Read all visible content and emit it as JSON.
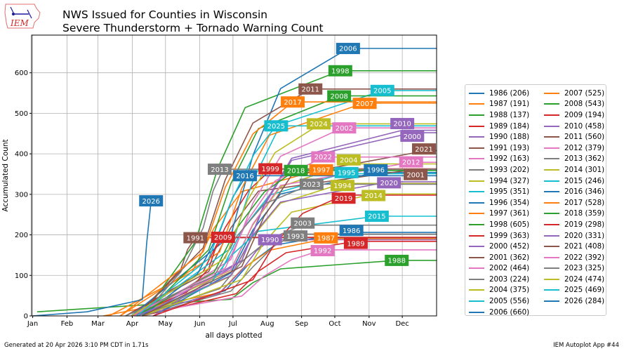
{
  "logo": {
    "text": "IEM"
  },
  "header": {
    "title_line1": "NWS Issued for Counties in Wisconsin",
    "title_line2": "Severe Thunderstorm + Tornado Warning Count"
  },
  "footer": {
    "generated": "Generated at 20 Apr 2026 3:10 PM CDT in 1.71s",
    "app": "IEM Autoplot App #44"
  },
  "chart_data": {
    "type": "line",
    "title": "NWS Issued for Counties in Wisconsin\nSevere Thunderstorm + Tornado Warning Count",
    "xlabel": "all days plotted",
    "ylabel": "Accumulated Count",
    "xlim_day_of_year": [
      0,
      366
    ],
    "ylim": [
      0,
      693
    ],
    "yticks": [
      0,
      100,
      200,
      300,
      400,
      500,
      600
    ],
    "xticks": [
      {
        "label": "Jan",
        "day": 1
      },
      {
        "label": "Feb",
        "day": 32
      },
      {
        "label": "Mar",
        "day": 60
      },
      {
        "label": "Apr",
        "day": 91
      },
      {
        "label": "May",
        "day": 121
      },
      {
        "label": "Jun",
        "day": 152
      },
      {
        "label": "Jul",
        "day": 182
      },
      {
        "label": "Aug",
        "day": 213
      },
      {
        "label": "Sep",
        "day": 244
      },
      {
        "label": "Oct",
        "day": 274
      },
      {
        "label": "Nov",
        "day": 305
      },
      {
        "label": "Dec",
        "day": 335
      }
    ],
    "grid": true,
    "legend_placement": "right",
    "series": [
      {
        "name": "1986",
        "legend": "1986 (206)",
        "total": 206,
        "color": "#1f77b4",
        "points": [
          [
            95,
            0
          ],
          [
            175,
            62
          ],
          [
            195,
            124
          ],
          [
            220,
            175
          ],
          [
            288,
            206
          ]
        ]
      },
      {
        "name": "1987",
        "legend": "1987 (191)",
        "total": 191,
        "color": "#ff7f0e",
        "points": [
          [
            65,
            0
          ],
          [
            170,
            57
          ],
          [
            190,
            115
          ],
          [
            215,
            162
          ],
          [
            267,
            191
          ]
        ]
      },
      {
        "name": "1988",
        "legend": "1988 (137)",
        "total": 137,
        "color": "#2ca02c",
        "points": [
          [
            5,
            10
          ],
          [
            180,
            41
          ],
          [
            200,
            82
          ],
          [
            225,
            116
          ],
          [
            330,
            137
          ]
        ]
      },
      {
        "name": "1989",
        "legend": "1989 (184)",
        "total": 184,
        "color": "#d62728",
        "points": [
          [
            100,
            0
          ],
          [
            185,
            55
          ],
          [
            205,
            110
          ],
          [
            230,
            156
          ],
          [
            293,
            184
          ]
        ]
      },
      {
        "name": "1990",
        "legend": "1990 (188)",
        "total": 188,
        "color": "#9467bd",
        "points": [
          [
            90,
            0
          ],
          [
            170,
            56
          ],
          [
            190,
            113
          ],
          [
            203,
            160
          ],
          [
            216,
            188
          ]
        ]
      },
      {
        "name": "1991",
        "legend": "1991 (193)",
        "total": 193,
        "color": "#8c564b",
        "points": [
          [
            95,
            0
          ],
          [
            115,
            58
          ],
          [
            135,
            116
          ],
          [
            141,
            164
          ],
          [
            148,
            193
          ]
        ]
      },
      {
        "name": "1992",
        "legend": "1992 (163)",
        "total": 163,
        "color": "#e377c2",
        "points": [
          [
            90,
            0
          ],
          [
            190,
            49
          ],
          [
            210,
            98
          ],
          [
            235,
            139
          ],
          [
            263,
            163
          ]
        ]
      },
      {
        "name": "1993",
        "legend": "1993 (202)",
        "total": 202,
        "color": "#7f7f7f",
        "points": [
          [
            100,
            0
          ],
          [
            180,
            61
          ],
          [
            200,
            121
          ],
          [
            219,
            172
          ],
          [
            238,
            202
          ]
        ]
      },
      {
        "name": "1994",
        "legend": "1994 (327)",
        "total": 327,
        "color": "#bcbd22",
        "points": [
          [
            100,
            0
          ],
          [
            180,
            98
          ],
          [
            200,
            196
          ],
          [
            225,
            278
          ],
          [
            281,
            327
          ]
        ]
      },
      {
        "name": "1995",
        "legend": "1995 (351)",
        "total": 351,
        "color": "#17becf",
        "points": [
          [
            100,
            0
          ],
          [
            170,
            105
          ],
          [
            190,
            211
          ],
          [
            215,
            298
          ],
          [
            281,
            351
          ]
        ]
      },
      {
        "name": "1996",
        "legend": "1996 (354)",
        "total": 354,
        "color": "#1f77b4",
        "points": [
          [
            110,
            0
          ],
          [
            180,
            106
          ],
          [
            200,
            212
          ],
          [
            225,
            301
          ],
          [
            311,
            354
          ]
        ]
      },
      {
        "name": "1997",
        "legend": "1997 (361)",
        "total": 361,
        "color": "#ff7f0e",
        "points": [
          [
            70,
            0
          ],
          [
            145,
            108
          ],
          [
            165,
            217
          ],
          [
            190,
            307
          ],
          [
            261,
            361
          ]
        ]
      },
      {
        "name": "1998",
        "legend": "1998 (605)",
        "total": 605,
        "color": "#2ca02c",
        "points": [
          [
            100,
            0
          ],
          [
            148,
            182
          ],
          [
            168,
            363
          ],
          [
            193,
            514
          ],
          [
            279,
            605
          ]
        ]
      },
      {
        "name": "1999",
        "legend": "1999 (363)",
        "total": 363,
        "color": "#d62728",
        "points": [
          [
            85,
            0
          ],
          [
            155,
            109
          ],
          [
            175,
            218
          ],
          [
            196,
            309
          ],
          [
            217,
            363
          ]
        ]
      },
      {
        "name": "2000",
        "legend": "2000 (452)",
        "total": 452,
        "color": "#9467bd",
        "points": [
          [
            110,
            0
          ],
          [
            190,
            136
          ],
          [
            210,
            271
          ],
          [
            235,
            384
          ],
          [
            344,
            452
          ]
        ]
      },
      {
        "name": "2001",
        "legend": "2001 (362)",
        "total": 362,
        "color": "#8c564b",
        "points": [
          [
            85,
            0
          ],
          [
            160,
            109
          ],
          [
            180,
            217
          ],
          [
            205,
            308
          ],
          [
            347,
            362
          ]
        ]
      },
      {
        "name": "2002",
        "legend": "2002 (464)",
        "total": 464,
        "color": "#e377c2",
        "points": [
          [
            100,
            0
          ],
          [
            180,
            139
          ],
          [
            200,
            278
          ],
          [
            225,
            394
          ],
          [
            281,
            464
          ]
        ]
      },
      {
        "name": "2003",
        "legend": "2003 (224)",
        "total": 224,
        "color": "#7f7f7f",
        "points": [
          [
            95,
            0
          ],
          [
            170,
            67
          ],
          [
            190,
            134
          ],
          [
            215,
            190
          ],
          [
            245,
            224
          ]
        ]
      },
      {
        "name": "2004",
        "legend": "2004 (375)",
        "total": 375,
        "color": "#bcbd22",
        "points": [
          [
            95,
            0
          ],
          [
            180,
            113
          ],
          [
            200,
            225
          ],
          [
            225,
            319
          ],
          [
            286,
            375
          ]
        ]
      },
      {
        "name": "2005",
        "legend": "2005 (556)",
        "total": 556,
        "color": "#17becf",
        "points": [
          [
            95,
            0
          ],
          [
            180,
            167
          ],
          [
            200,
            334
          ],
          [
            225,
            473
          ],
          [
            317,
            556
          ]
        ]
      },
      {
        "name": "2006",
        "legend": "2006 (660)",
        "total": 660,
        "color": "#1f77b4",
        "points": [
          [
            90,
            0
          ],
          [
            180,
            198
          ],
          [
            200,
            396
          ],
          [
            225,
            561
          ],
          [
            286,
            660
          ]
        ]
      },
      {
        "name": "2007",
        "legend": "2007 (525)",
        "total": 525,
        "color": "#ff7f0e",
        "points": [
          [
            80,
            0
          ],
          [
            170,
            158
          ],
          [
            190,
            315
          ],
          [
            215,
            446
          ],
          [
            300,
            525
          ]
        ]
      },
      {
        "name": "2008",
        "legend": "2008 (543)",
        "total": 543,
        "color": "#2ca02c",
        "points": [
          [
            100,
            0
          ],
          [
            160,
            163
          ],
          [
            180,
            326
          ],
          [
            205,
            462
          ],
          [
            279,
            543
          ]
        ]
      },
      {
        "name": "2009",
        "legend": "2009 (194)",
        "total": 194,
        "color": "#d62728",
        "points": [
          [
            90,
            0
          ],
          [
            140,
            58
          ],
          [
            160,
            116
          ],
          [
            166,
            165
          ],
          [
            173,
            194
          ]
        ]
      },
      {
        "name": "2010",
        "legend": "2010 (458)",
        "total": 458,
        "color": "#9467bd",
        "points": [
          [
            100,
            0
          ],
          [
            190,
            137
          ],
          [
            210,
            275
          ],
          [
            235,
            389
          ],
          [
            335,
            458
          ]
        ]
      },
      {
        "name": "2011",
        "legend": "2011 (560)",
        "total": 560,
        "color": "#8c564b",
        "points": [
          [
            95,
            0
          ],
          [
            155,
            168
          ],
          [
            175,
            336
          ],
          [
            200,
            476
          ],
          [
            252,
            560
          ]
        ]
      },
      {
        "name": "2012",
        "legend": "2012 (379)",
        "total": 379,
        "color": "#e377c2",
        "points": [
          [
            90,
            0
          ],
          [
            180,
            114
          ],
          [
            200,
            227
          ],
          [
            225,
            322
          ],
          [
            343,
            379
          ]
        ]
      },
      {
        "name": "2013",
        "legend": "2013 (362)",
        "total": 362,
        "color": "#7f7f7f",
        "points": [
          [
            100,
            0
          ],
          [
            135,
            109
          ],
          [
            155,
            217
          ],
          [
            164,
            308
          ],
          [
            173,
            362
          ]
        ]
      },
      {
        "name": "2014",
        "legend": "2014 (301)",
        "total": 301,
        "color": "#bcbd22",
        "points": [
          [
            100,
            0
          ],
          [
            190,
            90
          ],
          [
            210,
            181
          ],
          [
            235,
            256
          ],
          [
            309,
            301
          ]
        ]
      },
      {
        "name": "2015",
        "legend": "2015 (246)",
        "total": 246,
        "color": "#17becf",
        "points": [
          [
            95,
            0
          ],
          [
            160,
            74
          ],
          [
            180,
            148
          ],
          [
            205,
            209
          ],
          [
            312,
            246
          ]
        ]
      },
      {
        "name": "2016",
        "legend": "2016 (346)",
        "total": 346,
        "color": "#1f77b4",
        "points": [
          [
            100,
            0
          ],
          [
            150,
            104
          ],
          [
            170,
            208
          ],
          [
            182,
            294
          ],
          [
            194,
            346
          ]
        ]
      },
      {
        "name": "2017",
        "legend": "2017 (528)",
        "total": 528,
        "color": "#ff7f0e",
        "points": [
          [
            80,
            0
          ],
          [
            155,
            158
          ],
          [
            175,
            317
          ],
          [
            200,
            449
          ],
          [
            236,
            528
          ]
        ]
      },
      {
        "name": "2018",
        "legend": "2018 (359)",
        "total": 359,
        "color": "#2ca02c",
        "points": [
          [
            95,
            0
          ],
          [
            165,
            108
          ],
          [
            185,
            215
          ],
          [
            210,
            305
          ],
          [
            238,
            359
          ]
        ]
      },
      {
        "name": "2019",
        "legend": "2019 (298)",
        "total": 298,
        "color": "#d62728",
        "points": [
          [
            110,
            0
          ],
          [
            200,
            89
          ],
          [
            220,
            179
          ],
          [
            245,
            253
          ],
          [
            282,
            298
          ]
        ]
      },
      {
        "name": "2020",
        "legend": "2020 (331)",
        "total": 331,
        "color": "#9467bd",
        "points": [
          [
            95,
            0
          ],
          [
            180,
            99
          ],
          [
            200,
            199
          ],
          [
            225,
            281
          ],
          [
            323,
            331
          ]
        ]
      },
      {
        "name": "2021",
        "legend": "2021 (408)",
        "total": 408,
        "color": "#8c564b",
        "points": [
          [
            100,
            0
          ],
          [
            190,
            122
          ],
          [
            210,
            245
          ],
          [
            235,
            347
          ],
          [
            357,
            408
          ]
        ]
      },
      {
        "name": "2022",
        "legend": "2022 (392)",
        "total": 392,
        "color": "#e377c2",
        "points": [
          [
            90,
            0
          ],
          [
            175,
            118
          ],
          [
            195,
            235
          ],
          [
            220,
            333
          ],
          [
            264,
            392
          ]
        ]
      },
      {
        "name": "2023",
        "legend": "2023 (325)",
        "total": 325,
        "color": "#7f7f7f",
        "points": [
          [
            85,
            0
          ],
          [
            165,
            98
          ],
          [
            185,
            195
          ],
          [
            210,
            276
          ],
          [
            253,
            325
          ]
        ]
      },
      {
        "name": "2024",
        "legend": "2024 (474)",
        "total": 474,
        "color": "#bcbd22",
        "points": [
          [
            90,
            0
          ],
          [
            175,
            142
          ],
          [
            195,
            284
          ],
          [
            220,
            403
          ],
          [
            261,
            474
          ]
        ]
      },
      {
        "name": "2025",
        "legend": "2025 (469)",
        "total": 469,
        "color": "#17becf",
        "points": [
          [
            95,
            0
          ],
          [
            160,
            141
          ],
          [
            180,
            281
          ],
          [
            201,
            399
          ],
          [
            221,
            469
          ]
        ]
      },
      {
        "name": "2026",
        "legend": "2026 (284)",
        "total": 284,
        "color": "#1f77b4",
        "points": [
          [
            1,
            0
          ],
          [
            50,
            10
          ],
          [
            100,
            40
          ],
          [
            104,
            180
          ],
          [
            108,
            284
          ]
        ],
        "partial_year": true
      }
    ]
  }
}
